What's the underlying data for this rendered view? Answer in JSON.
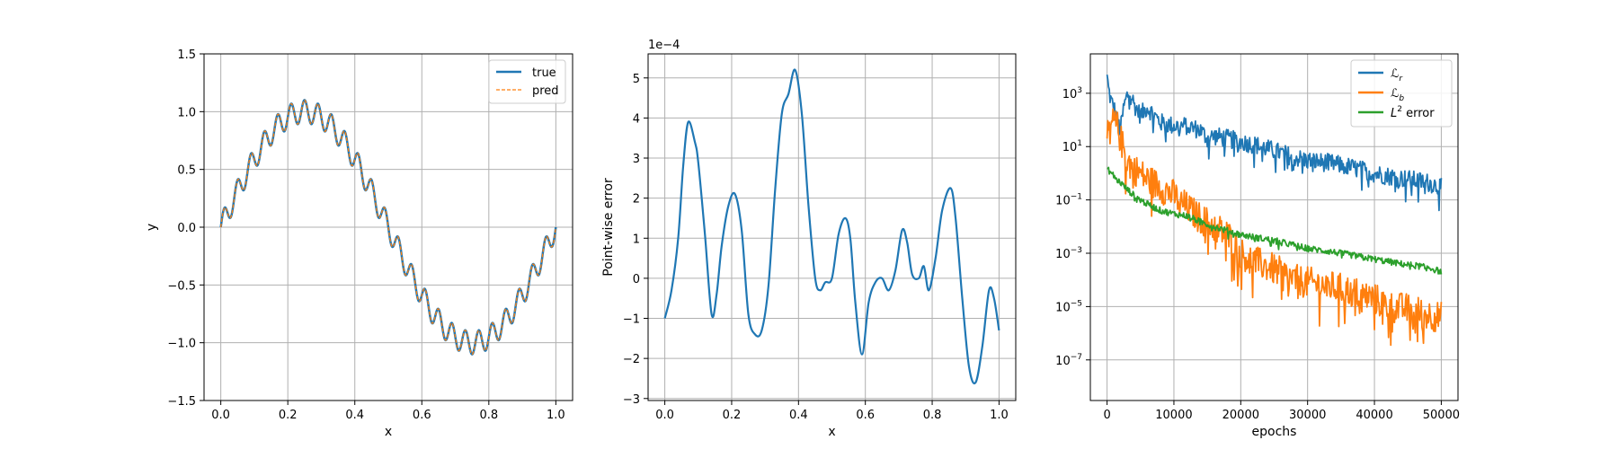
{
  "chart_data": [
    {
      "type": "line",
      "xlabel": "x",
      "ylabel": "y",
      "xlim": [
        -0.05,
        1.05
      ],
      "ylim": [
        -1.5,
        1.5
      ],
      "xticks": [
        0.0,
        0.2,
        0.4,
        0.6,
        0.8,
        1.0
      ],
      "xtick_labels": [
        "0.0",
        "0.2",
        "0.4",
        "0.6",
        "0.8",
        "1.0"
      ],
      "yticks": [
        -1.5,
        -1.0,
        -0.5,
        0.0,
        0.5,
        1.0,
        1.5
      ],
      "ytick_labels": [
        "−1.5",
        "−1.0",
        "−0.5",
        "0.0",
        "0.5",
        "1.0",
        "1.5"
      ],
      "grid": true,
      "legend_position": "top-right",
      "function": "y = sin(2πx) + 0.1·sin(50πx), sampled at x = 0…1",
      "series": [
        {
          "name": "true",
          "color": "#1f77b4",
          "style": "solid"
        },
        {
          "name": "pred",
          "color": "#ff7f0e",
          "style": "dashed"
        }
      ]
    },
    {
      "type": "line",
      "xlabel": "x",
      "ylabel": "Point-wise error",
      "scale_label": "1e−4",
      "xlim": [
        -0.05,
        1.05
      ],
      "ylim": [
        -3.05,
        5.6
      ],
      "xticks": [
        0.0,
        0.2,
        0.4,
        0.6,
        0.8,
        1.0
      ],
      "xtick_labels": [
        "0.0",
        "0.2",
        "0.4",
        "0.6",
        "0.8",
        "1.0"
      ],
      "yticks": [
        -3,
        -2,
        -1,
        0,
        1,
        2,
        3,
        4,
        5
      ],
      "ytick_labels": [
        "−3",
        "−2",
        "−1",
        "0",
        "1",
        "2",
        "3",
        "4",
        "5"
      ],
      "grid": true,
      "series": [
        {
          "color": "#1f77b4",
          "x": [
            0.0,
            0.02,
            0.04,
            0.055,
            0.07,
            0.09,
            0.1,
            0.12,
            0.14,
            0.155,
            0.17,
            0.19,
            0.21,
            0.23,
            0.25,
            0.27,
            0.29,
            0.31,
            0.33,
            0.35,
            0.37,
            0.39,
            0.41,
            0.43,
            0.45,
            0.465,
            0.48,
            0.5,
            0.52,
            0.54,
            0.555,
            0.57,
            0.59,
            0.61,
            0.63,
            0.65,
            0.67,
            0.69,
            0.71,
            0.725,
            0.74,
            0.76,
            0.775,
            0.79,
            0.81,
            0.83,
            0.855,
            0.87,
            0.89,
            0.91,
            0.93,
            0.95,
            0.97,
            0.985,
            1.0
          ],
          "y": [
            -1.0,
            -0.3,
            1.0,
            2.8,
            3.9,
            3.4,
            2.9,
            1.1,
            -0.9,
            -0.4,
            0.8,
            1.8,
            2.1,
            1.2,
            -0.9,
            -1.4,
            -1.3,
            -0.2,
            2.2,
            4.1,
            4.6,
            5.2,
            4.1,
            1.8,
            0.0,
            -0.3,
            -0.1,
            0.0,
            1.1,
            1.5,
            1.0,
            -0.6,
            -1.9,
            -0.6,
            -0.1,
            0.0,
            -0.3,
            0.2,
            1.2,
            0.9,
            0.1,
            0.0,
            0.3,
            -0.3,
            0.5,
            1.7,
            2.25,
            1.5,
            -0.5,
            -2.2,
            -2.6,
            -1.7,
            -0.3,
            -0.5,
            -1.3
          ]
        }
      ]
    },
    {
      "type": "line",
      "xlabel": "epochs",
      "ylabel": "",
      "yscale": "log",
      "xlim": [
        -2500,
        52500
      ],
      "ylim": [
        3e-09,
        30000.0
      ],
      "xticks": [
        0,
        10000,
        20000,
        30000,
        40000,
        50000
      ],
      "xtick_labels": [
        "0",
        "10000",
        "20000",
        "30000",
        "40000",
        "50000"
      ],
      "yticks": [
        1e-07,
        1e-05,
        0.001,
        0.1,
        10.0,
        1000.0
      ],
      "ytick_labels": [
        [
          "10",
          "−7"
        ],
        [
          "10",
          "−5"
        ],
        [
          "10",
          "−3"
        ],
        [
          "10",
          "−1"
        ],
        [
          "10",
          "1"
        ],
        [
          "10",
          "3"
        ]
      ],
      "grid": true,
      "legend_position": "top-right",
      "series": [
        {
          "name": "ℒ",
          "sub": "r",
          "color": "#1f77b4",
          "x": [
            0,
            200,
            600,
            1000,
            1500,
            2000,
            2500,
            3000,
            3500,
            4000,
            5000,
            6000,
            8000,
            10000,
            12000,
            14000,
            15000,
            16000,
            18000,
            20000,
            22000,
            25000,
            28000,
            30000,
            33000,
            36000,
            40000,
            42000,
            45000,
            48000,
            50000
          ],
          "y": [
            5000,
            1500,
            500,
            300,
            100,
            40,
            300,
            800,
            1200,
            400,
            150,
            300,
            80,
            60,
            60,
            40,
            20,
            25,
            20,
            15,
            12,
            7,
            4,
            3,
            2.5,
            1.8,
            1.0,
            0.8,
            0.6,
            0.45,
            0.3
          ],
          "noise": 0.35
        },
        {
          "name": "ℒ",
          "sub": "b",
          "color": "#ff7f0e",
          "x": [
            0,
            500,
            1000,
            1500,
            2000,
            3000,
            4000,
            6000,
            8000,
            10000,
            12000,
            14000,
            16000,
            18000,
            20000,
            22000,
            25000,
            28000,
            30000,
            33000,
            36000,
            40000,
            42000,
            45000,
            48000,
            50000
          ],
          "y": [
            20,
            60,
            80,
            60,
            20,
            3,
            1.5,
            0.6,
            0.3,
            0.15,
            0.05,
            0.02,
            0.01,
            0.005,
            0.001,
            0.0005,
            0.00025,
            0.0001,
            8e-05,
            6e-05,
            4e-05,
            2e-05,
            1e-05,
            8e-06,
            5e-06,
            4e-06
          ],
          "noise": 0.6
        },
        {
          "name": "L",
          "sup": "2",
          "suffix": " error",
          "color": "#2ca02c",
          "x": [
            0,
            500,
            1000,
            2000,
            3000,
            4000,
            5000,
            6000,
            8000,
            10000,
            12000,
            14000,
            16000,
            18000,
            20000,
            22000,
            25000,
            28000,
            30000,
            33000,
            36000,
            40000,
            44000,
            48000,
            50000
          ],
          "y": [
            1.5,
            1.1,
            0.8,
            0.45,
            0.25,
            0.15,
            0.1,
            0.07,
            0.04,
            0.03,
            0.025,
            0.015,
            0.01,
            0.007,
            0.005,
            0.004,
            0.003,
            0.002,
            0.0015,
            0.0012,
            0.0009,
            0.0006,
            0.0004,
            0.0003,
            0.0002
          ],
          "noise": 0.12
        }
      ]
    }
  ]
}
